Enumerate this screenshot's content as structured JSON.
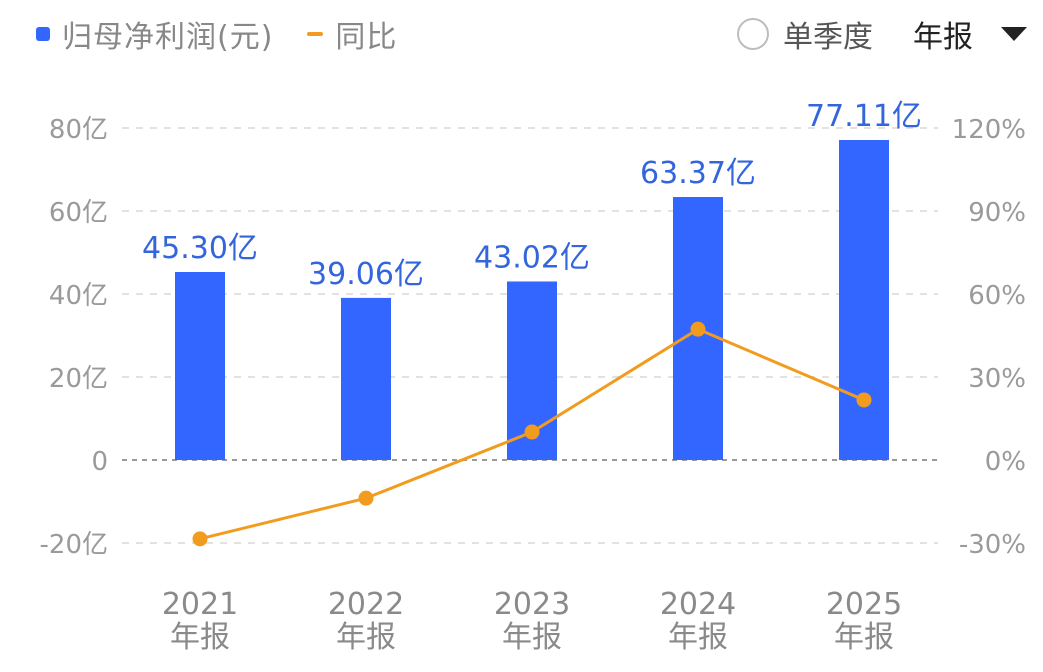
{
  "legend": {
    "bar_label": "归母净利润(元)",
    "line_label": "同比"
  },
  "controls": {
    "single_quarter_label": "单季度",
    "period_label": "年报"
  },
  "colors": {
    "bar": "#3366ff",
    "line": "#f29c1f",
    "label": "#3366dd",
    "grid": "#e2e2e2",
    "zero": "#9a9a9a"
  },
  "chart_data": {
    "type": "bar",
    "categories": [
      "2021\n年报",
      "2022\n年报",
      "2023\n年报",
      "2024\n年报",
      "2025\n年报"
    ],
    "series": [
      {
        "name": "归母净利润(元)",
        "type": "bar",
        "axis": "left",
        "values": [
          45.3,
          39.06,
          43.02,
          63.37,
          77.11
        ],
        "data_labels": [
          "45.30亿",
          "39.06亿",
          "43.02亿",
          "63.37亿",
          "77.11亿"
        ]
      },
      {
        "name": "同比",
        "type": "line",
        "axis": "right",
        "values": [
          -28.5,
          -13.8,
          10.1,
          47.3,
          21.7
        ]
      }
    ],
    "y_left": {
      "range": [
        -20,
        80
      ],
      "ticks": [
        80,
        60,
        40,
        20,
        0,
        -20
      ],
      "tick_labels": [
        "80亿",
        "60亿",
        "40亿",
        "20亿",
        "0",
        "-20亿"
      ]
    },
    "y_right": {
      "range": [
        -30,
        120
      ],
      "ticks": [
        120,
        90,
        60,
        30,
        0,
        -30
      ],
      "tick_labels": [
        "120%",
        "90%",
        "60%",
        "30%",
        "0%",
        "-30%"
      ]
    },
    "grid": true,
    "legend_position": "top-left"
  }
}
